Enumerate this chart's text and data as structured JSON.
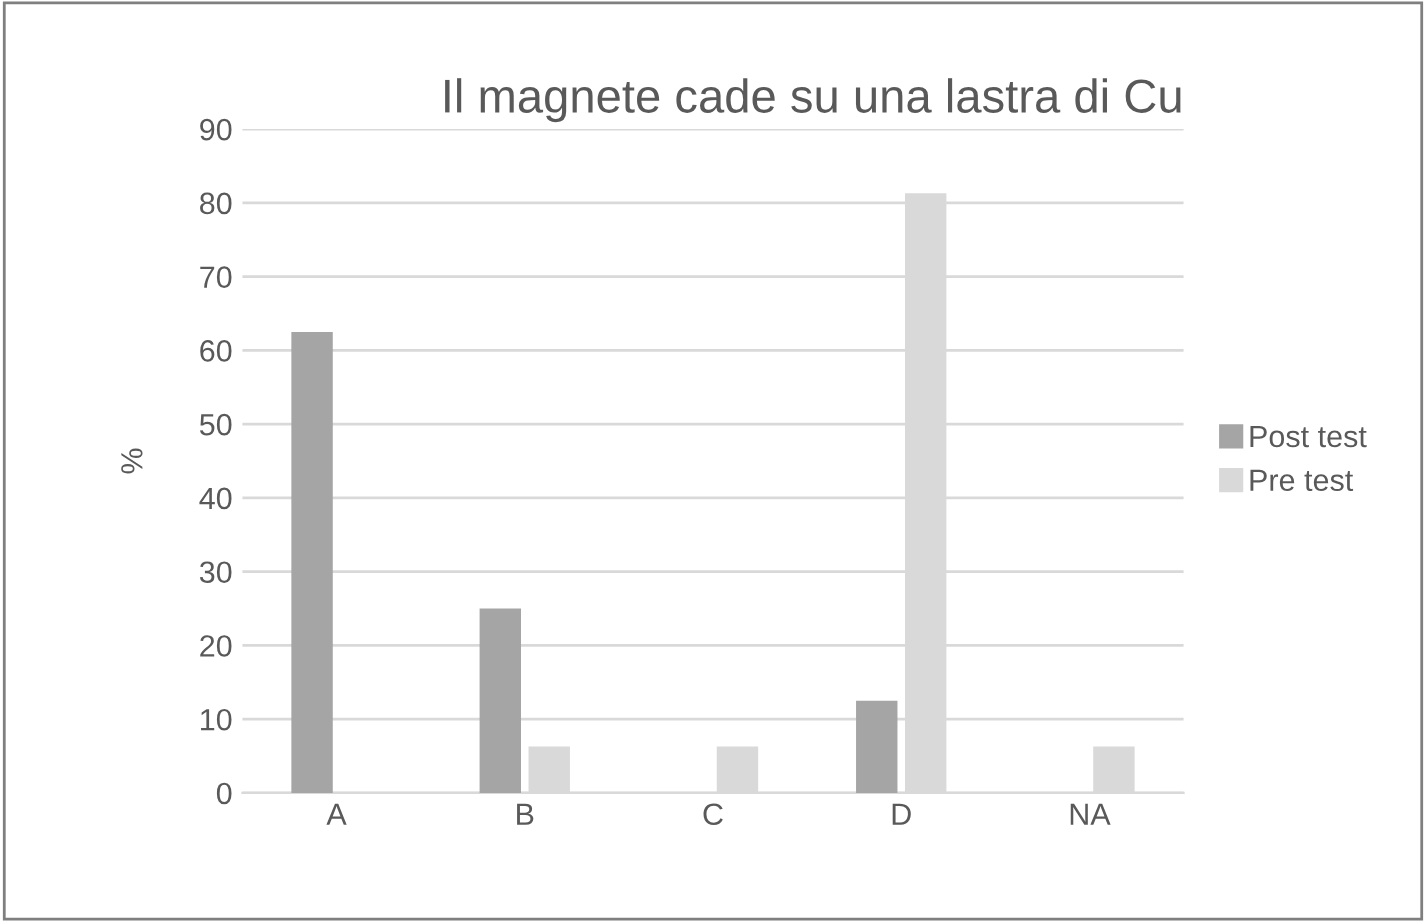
{
  "chart_data": {
    "type": "bar",
    "title": "Il magnete cade su una lastra di Cu",
    "ylabel": "%",
    "categories": [
      "A",
      "B",
      "C",
      "D",
      "NA"
    ],
    "series": [
      {
        "name": "Post test",
        "color": "#a5a5a5",
        "values": [
          62.5,
          25,
          0,
          12.5,
          0
        ]
      },
      {
        "name": "Pre test",
        "color": "#d9d9d9",
        "values": [
          0,
          6.3,
          6.3,
          81.3,
          6.3
        ]
      }
    ],
    "ylim": [
      0,
      90
    ],
    "yticks": [
      0,
      10,
      20,
      30,
      40,
      50,
      60,
      70,
      80,
      90
    ],
    "grid": "y",
    "legend": "right"
  }
}
